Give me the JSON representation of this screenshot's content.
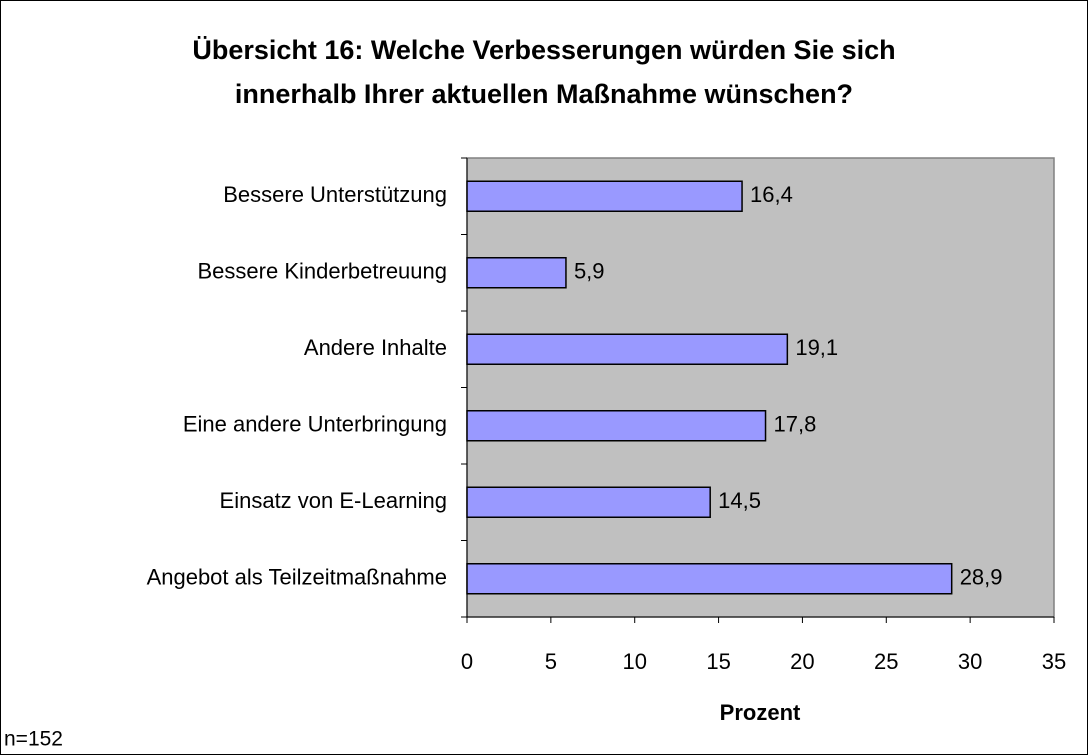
{
  "chart_data": {
    "type": "bar",
    "orientation": "horizontal",
    "title": [
      "Übersicht 16: Welche Verbesserungen würden Sie sich",
      "innerhalb Ihrer aktuellen Maßnahme wünschen?"
    ],
    "categories": [
      "Bessere Unterstützung",
      "Bessere Kinderbetreuung",
      "Andere Inhalte",
      "Eine andere Unterbringung",
      "Einsatz von E-Learning",
      "Angebot als Teilzeitmaßnahme"
    ],
    "values": [
      16.4,
      5.9,
      19.1,
      17.8,
      14.5,
      28.9
    ],
    "value_labels": [
      "16,4",
      "5,9",
      "19,1",
      "17,8",
      "14,5",
      "28,9"
    ],
    "color": "#9999ff",
    "xlabel": "Prozent",
    "xlim": [
      0,
      35
    ],
    "xticks": [
      0,
      5,
      10,
      15,
      20,
      25,
      30,
      35
    ],
    "note": "n=152"
  }
}
